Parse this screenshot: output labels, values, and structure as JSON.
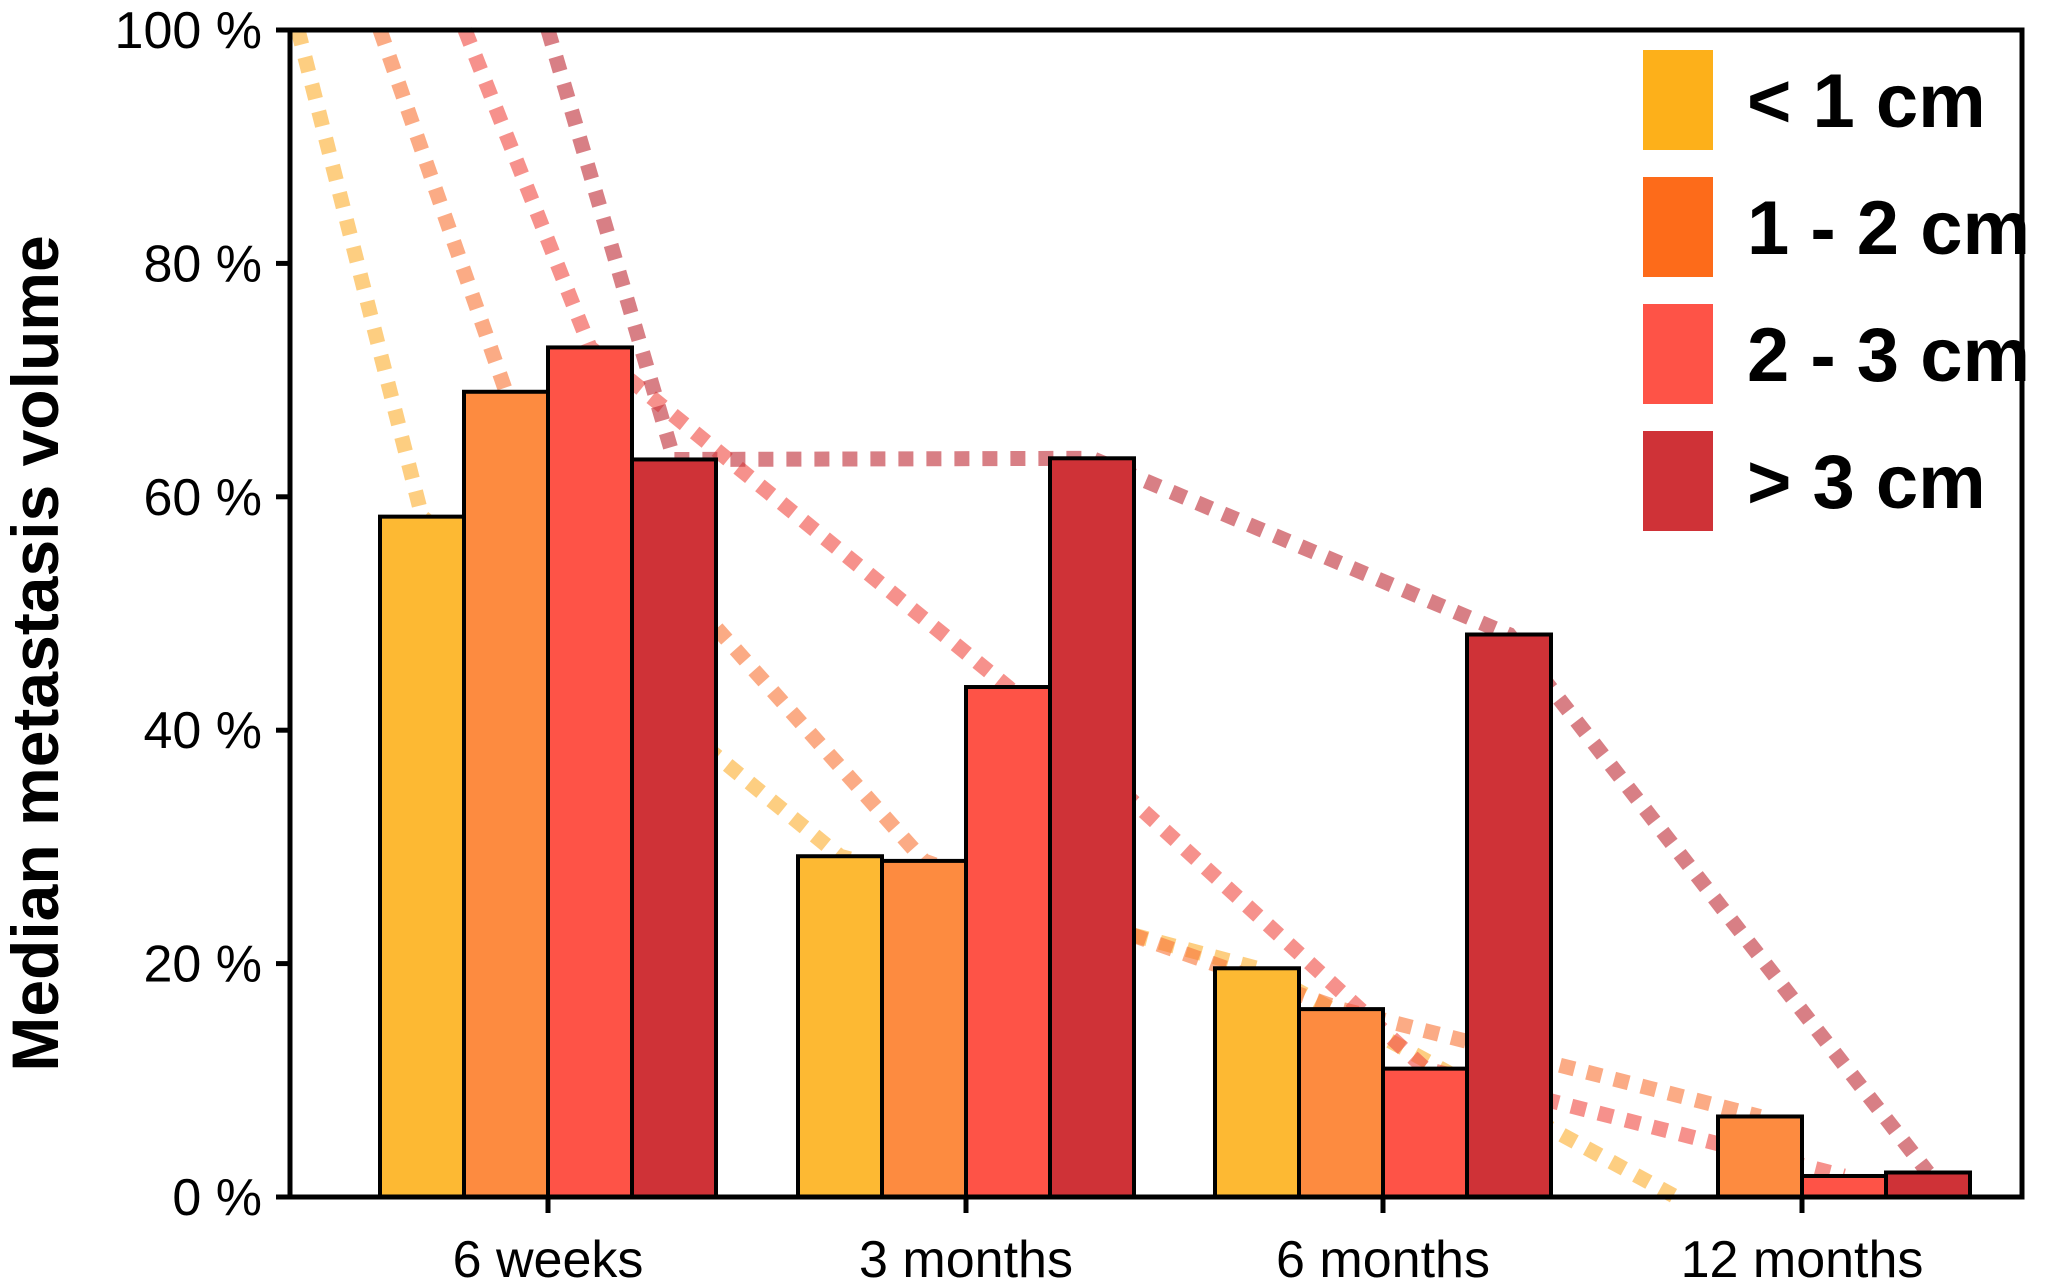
{
  "chart_data": {
    "type": "bar",
    "title": "",
    "xlabel": "",
    "ylabel": "Median metastasis volume",
    "ylim": [
      0,
      100
    ],
    "yticks": [
      0,
      20,
      40,
      60,
      80,
      100
    ],
    "ytick_labels": [
      "0 %",
      "20 %",
      "40 %",
      "60 %",
      "80 %",
      "100 %"
    ],
    "categories": [
      "6 weeks",
      "3 months",
      "6 months",
      "12 months"
    ],
    "trend_start_value": 100,
    "legend_position": "top-right",
    "series": [
      {
        "name": "< 1 cm",
        "color": "#fdb933",
        "trend_color": "#fbb033",
        "values": [
          58.3,
          29.2,
          19.6,
          0.0
        ]
      },
      {
        "name": "1 - 2 cm",
        "color": "#fd8b40",
        "trend_color": "#f9783a",
        "values": [
          69.0,
          28.8,
          16.1,
          6.9
        ]
      },
      {
        "name": "2 - 3 cm",
        "color": "#fe5347",
        "trend_color": "#f04d45",
        "values": [
          72.8,
          43.7,
          11.0,
          1.8
        ]
      },
      {
        "name": "> 3 cm",
        "color": "#cf3237",
        "trend_color": "#c0303a",
        "values": [
          63.2,
          63.3,
          48.2,
          2.1
        ]
      }
    ],
    "legend_colors": [
      "#fdb01a",
      "#fd6b1a",
      "#fe5347",
      "#cf3237"
    ]
  }
}
